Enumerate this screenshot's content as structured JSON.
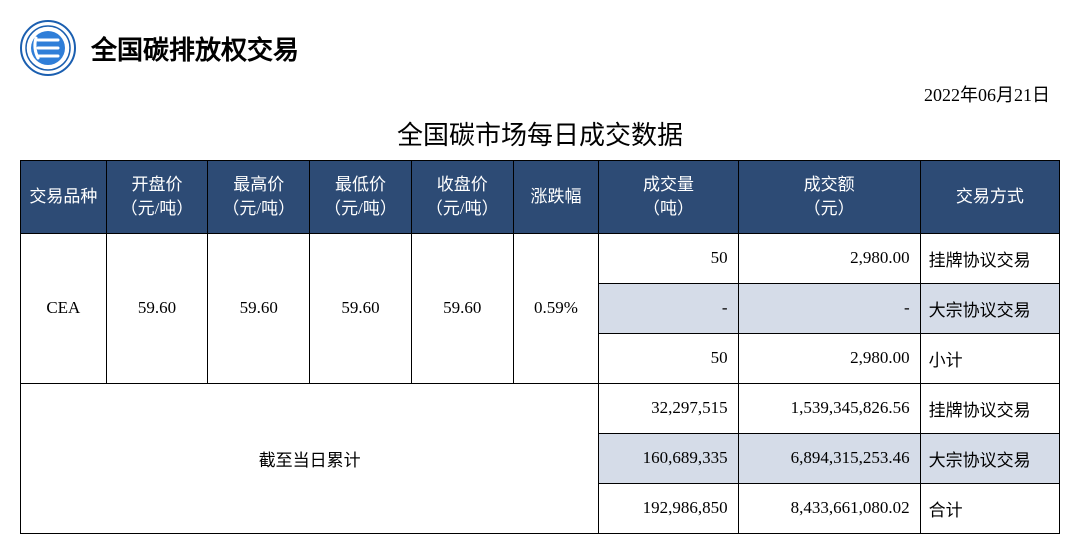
{
  "header": {
    "page_title": "全国碳排放权交易",
    "date": "2022年06月21日",
    "table_title": "全国碳市场每日成交数据"
  },
  "colors": {
    "header_bg": "#2d4b75",
    "header_fg": "#ffffff",
    "shade_bg": "#d5dce8",
    "border": "#000000",
    "logo_ring": "#1b5fb0",
    "logo_inner": "#2f7ed8"
  },
  "columns": {
    "product": "交易品种",
    "open": "开盘价\n（元/吨）",
    "high": "最高价\n（元/吨）",
    "low": "最低价\n（元/吨）",
    "close": "收盘价\n（元/吨）",
    "change": "涨跌幅",
    "volume": "成交量\n（吨）",
    "amount": "成交额\n（元）",
    "trade_type": "交易方式"
  },
  "daily": {
    "product": "CEA",
    "open": "59.60",
    "high": "59.60",
    "low": "59.60",
    "close": "59.60",
    "change": "0.59%",
    "rows": [
      {
        "volume": "50",
        "amount": "2,980.00",
        "type": "挂牌协议交易",
        "shade": false
      },
      {
        "volume": "-",
        "amount": "-",
        "type": "大宗协议交易",
        "shade": true
      },
      {
        "volume": "50",
        "amount": "2,980.00",
        "type": "小计",
        "shade": false
      }
    ]
  },
  "cumulative": {
    "label": "截至当日累计",
    "rows": [
      {
        "volume": "32,297,515",
        "amount": "1,539,345,826.56",
        "type": "挂牌协议交易",
        "shade": false
      },
      {
        "volume": "160,689,335",
        "amount": "6,894,315,253.46",
        "type": "大宗协议交易",
        "shade": true
      },
      {
        "volume": "192,986,850",
        "amount": "8,433,661,080.02",
        "type": "合计",
        "shade": false
      }
    ]
  }
}
